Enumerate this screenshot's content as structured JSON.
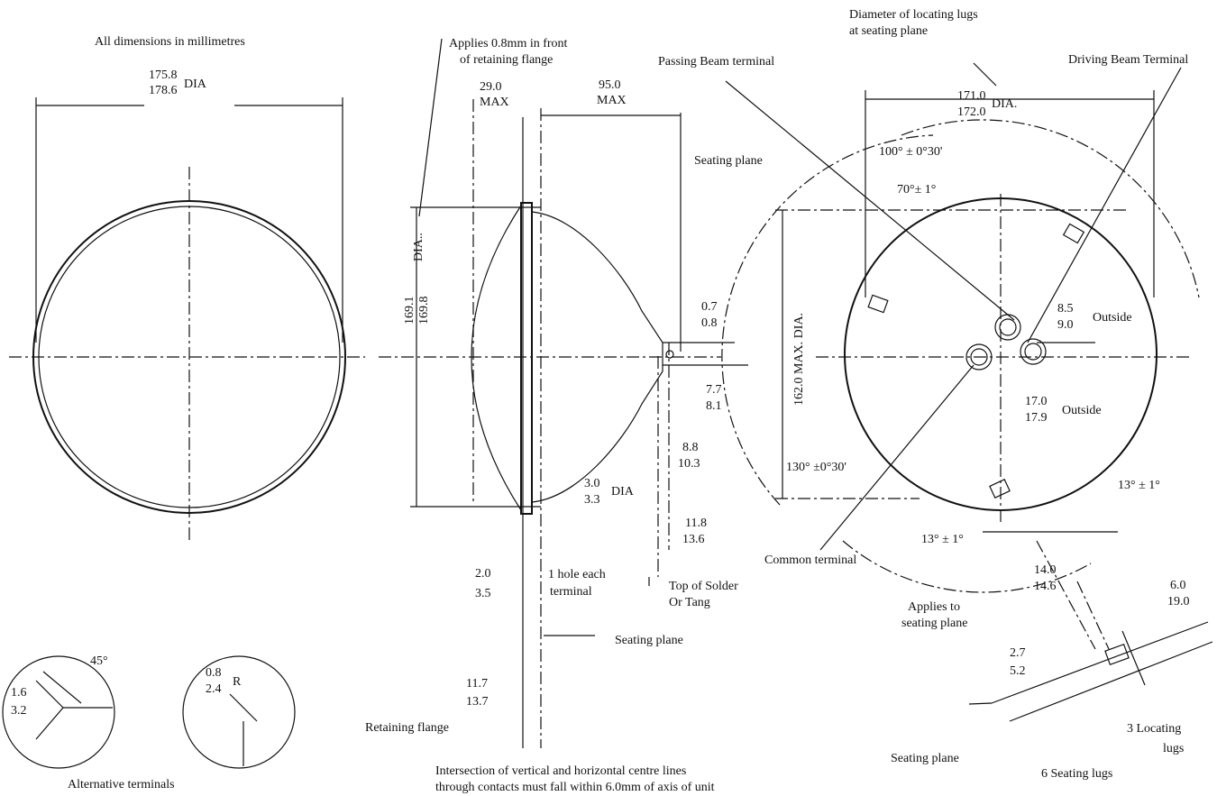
{
  "labels": [
    "All dimensions in millimetres",
    "175.8",
    "178.6",
    "DIA",
    "Applies 0.8mm in front",
    "of retaining flange",
    "29.0",
    "MAX",
    "95.0",
    "MAX",
    "Passing Beam terminal",
    "Diameter of locating lugs",
    "at seating plane",
    "Driving Beam Terminal",
    "171.0",
    "172.0",
    "DIA.",
    "100° ± 0°30'",
    "70°± 1°",
    "Seating plane",
    "169.1",
    "169.8",
    "DIA..",
    "162.0  MAX. DIA.",
    "0.7",
    "0.8",
    "7.7",
    "8.1",
    "8.5",
    "9.0",
    "Outside",
    "17.0",
    "17.9",
    "Outside",
    "8.8",
    "10.3",
    "3.0",
    "3.3",
    "DIA",
    "11.8",
    "13.6",
    "130° ±0°30'",
    "13° ± 1°",
    "13° ± 1°",
    "Common terminal",
    "2.0",
    "3.5",
    "1 hole each",
    "terminal",
    "Top of Solder",
    "Or Tang",
    "Seating plane",
    "11.7",
    "13.7",
    "Retaining flange",
    "Applies to",
    "seating plane",
    "14.0",
    "14.6",
    "6.0",
    "19.0",
    "2.7",
    "5.2",
    "3 Locating",
    "lugs",
    "Seating plane",
    "6 Seating lugs",
    "Intersection of vertical and horizontal centre lines",
    "through contacts must fall within 6.0mm of axis of unit",
    "1.6",
    "3.2",
    "45°",
    "0.8",
    "2.4",
    "R",
    "Alternative terminals"
  ]
}
